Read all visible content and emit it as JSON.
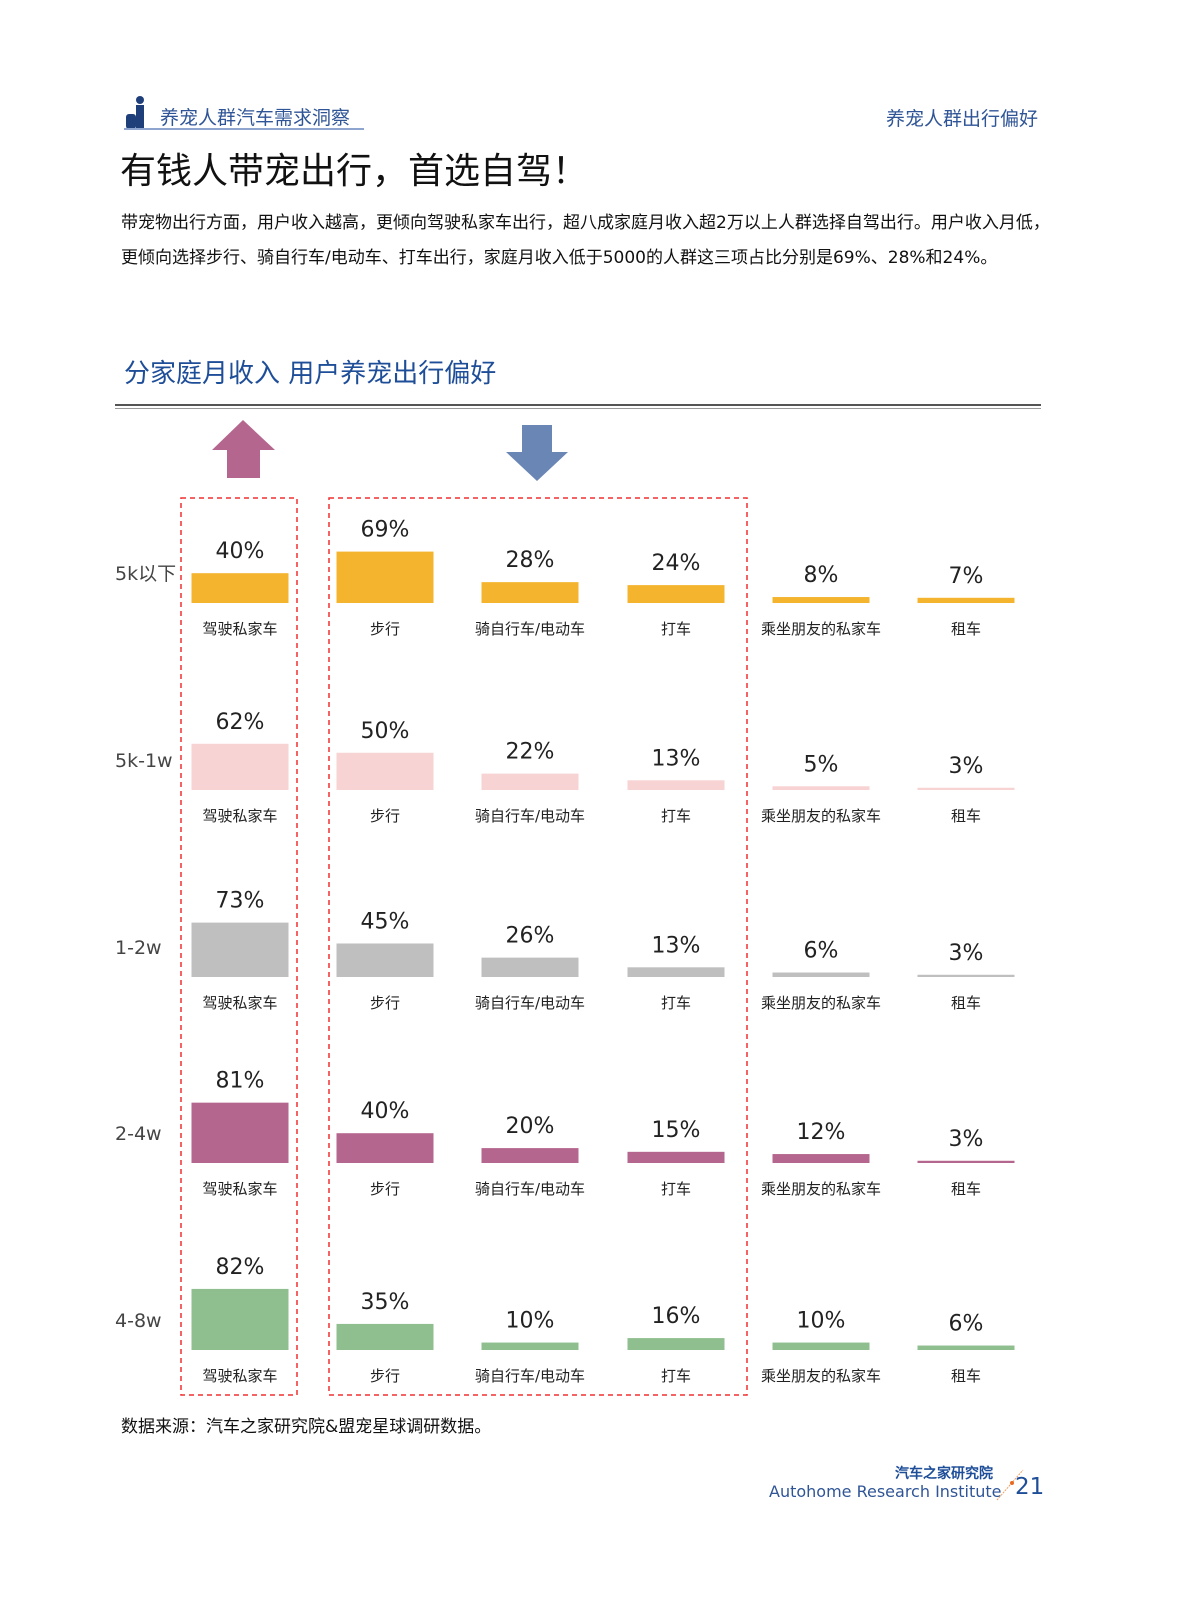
{
  "header": {
    "breadcrumb": "养宠人群汽车需求洞察",
    "section": "养宠人群出行偏好"
  },
  "title": "有钱人带宠出行，首选自驾！",
  "body": "带宠物出行方面，用户收入越高，更倾向驾驶私家车出行，超八成家庭月收入超2万以上人群选择自驾出行。用户收入月低，更倾向选择步行、骑自行车/电动车、打车出行，家庭月收入低于5000的人群这三项占比分别是69%、28%和24%。",
  "chart_title": "分家庭月收入  用户养宠出行偏好",
  "source": "数据来源：汽车之家研究院&盟宠星球调研数据。",
  "footer": {
    "logo_cn": "汽车之家研究院",
    "logo_en": "Autohome Research Institute",
    "page": "21"
  },
  "chart_data": {
    "type": "bar",
    "title": "分家庭月收入  用户养宠出行偏好",
    "categories": [
      "驾驶私家车",
      "步行",
      "骑自行车/电动车",
      "打车",
      "乘坐朋友的私家车",
      "租车"
    ],
    "series": [
      {
        "name": "5k以下",
        "color": "#F4B42E",
        "values": [
          40,
          69,
          28,
          24,
          8,
          7
        ]
      },
      {
        "name": "5k-1w",
        "color": "#F7D3D3",
        "values": [
          62,
          50,
          22,
          13,
          5,
          3
        ]
      },
      {
        "name": "1-2w",
        "color": "#BFBFBF",
        "values": [
          73,
          45,
          26,
          13,
          6,
          3
        ]
      },
      {
        "name": "2-4w",
        "color": "#B5668E",
        "values": [
          81,
          40,
          20,
          15,
          12,
          3
        ]
      },
      {
        "name": "4-8w",
        "color": "#8FBF8F",
        "values": [
          82,
          35,
          10,
          16,
          10,
          6
        ]
      }
    ],
    "unit": "%",
    "highlight_up": "驾驶私家车",
    "highlight_down": [
      "步行",
      "骑自行车/电动车",
      "打车"
    ],
    "arrow_colors": {
      "up": "#B5668E",
      "down": "#6A86B5"
    }
  }
}
